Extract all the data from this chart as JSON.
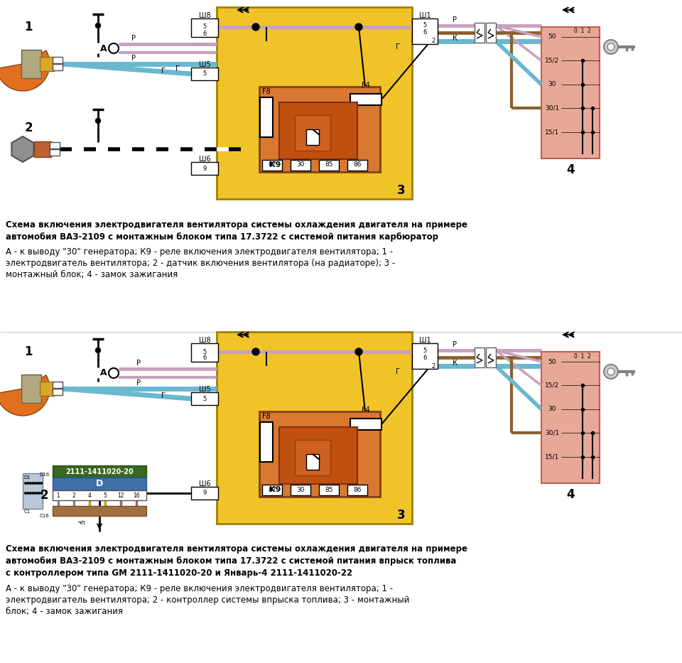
{
  "bg_color": "#ffffff",
  "title1_line1": "Схема включения электродвигателя вентилятора системы охлаждения двигателя на примере",
  "title1_line2": "автомобия ВАЗ-2109 с монтажным блоком типа 17.3722 с системой питания карбюратор",
  "desc1_line1": "А - к выводу \"30\" генератора; К9 - реле включения электродвигателя вентилятора; 1 -",
  "desc1_line2": "электродвигатель вентилятора; 2 - датчик включения вентилятора (на радиаторе); 3 -",
  "desc1_line3": "монтажный блок; 4 - замок зажигания",
  "title2_line1": "Схема включения электродвигателя вентилятора системы охлаждения двигателя на примере",
  "title2_line2": "автомобия ВАЗ-2109 с монтажным блоком типа 17.3722 с системой питания впрыск топлива",
  "title2_line3": "с контроллером типа GM 2111-1411020-20 и Январь-4 2111-1411020-22",
  "desc2_line1": "А - к выводу \"30\" генератора; К9 - реле включения электродвигателя вентилятора; 1 -",
  "desc2_line2": "электродвигатель вентилятора; 2 - контроллер системы впрыска топлива; 3 - монтажный",
  "desc2_line3": "блок; 4 - замок зажигания",
  "yellow": "#f0c428",
  "orange": "#d97830",
  "salmon": "#e8a898",
  "pink": "#c8a0c0",
  "blue_w": "#68b8d0",
  "brown_w": "#8b6030",
  "controller_label": "2111-1411020-20"
}
